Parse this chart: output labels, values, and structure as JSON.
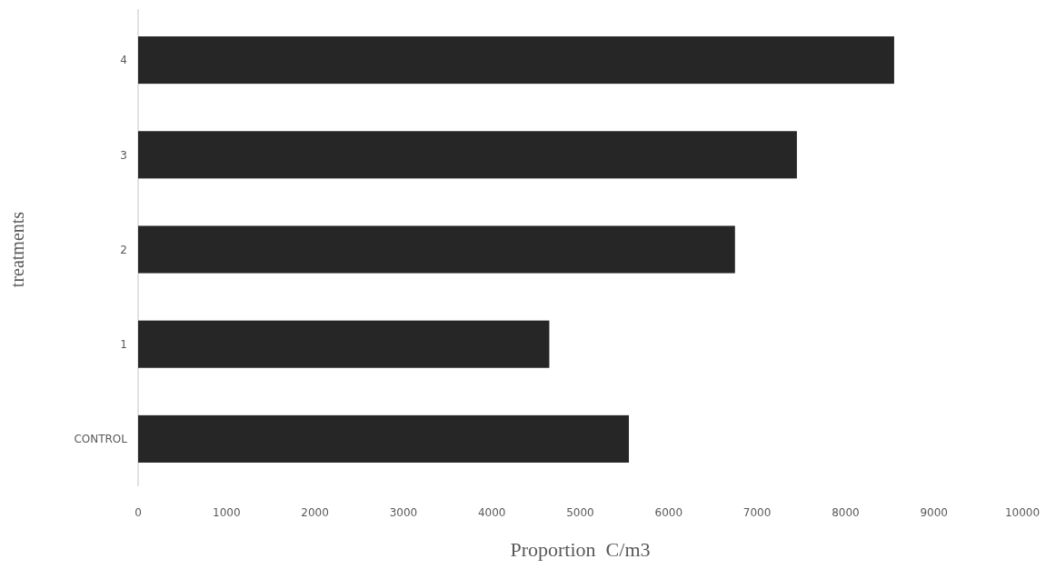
{
  "chart_data": {
    "type": "bar",
    "orientation": "horizontal",
    "categories": [
      "4",
      "3",
      "2",
      "1",
      "CONTROL"
    ],
    "values": [
      8550,
      7450,
      6750,
      4650,
      5550
    ],
    "color": "#262626",
    "xlabel": "Proportion  C/m3",
    "ylabel": "treatments",
    "xlim": [
      0,
      10000
    ],
    "xticks": [
      0,
      1000,
      2000,
      3000,
      4000,
      5000,
      6000,
      7000,
      8000,
      9000,
      10000
    ],
    "grid": false
  }
}
